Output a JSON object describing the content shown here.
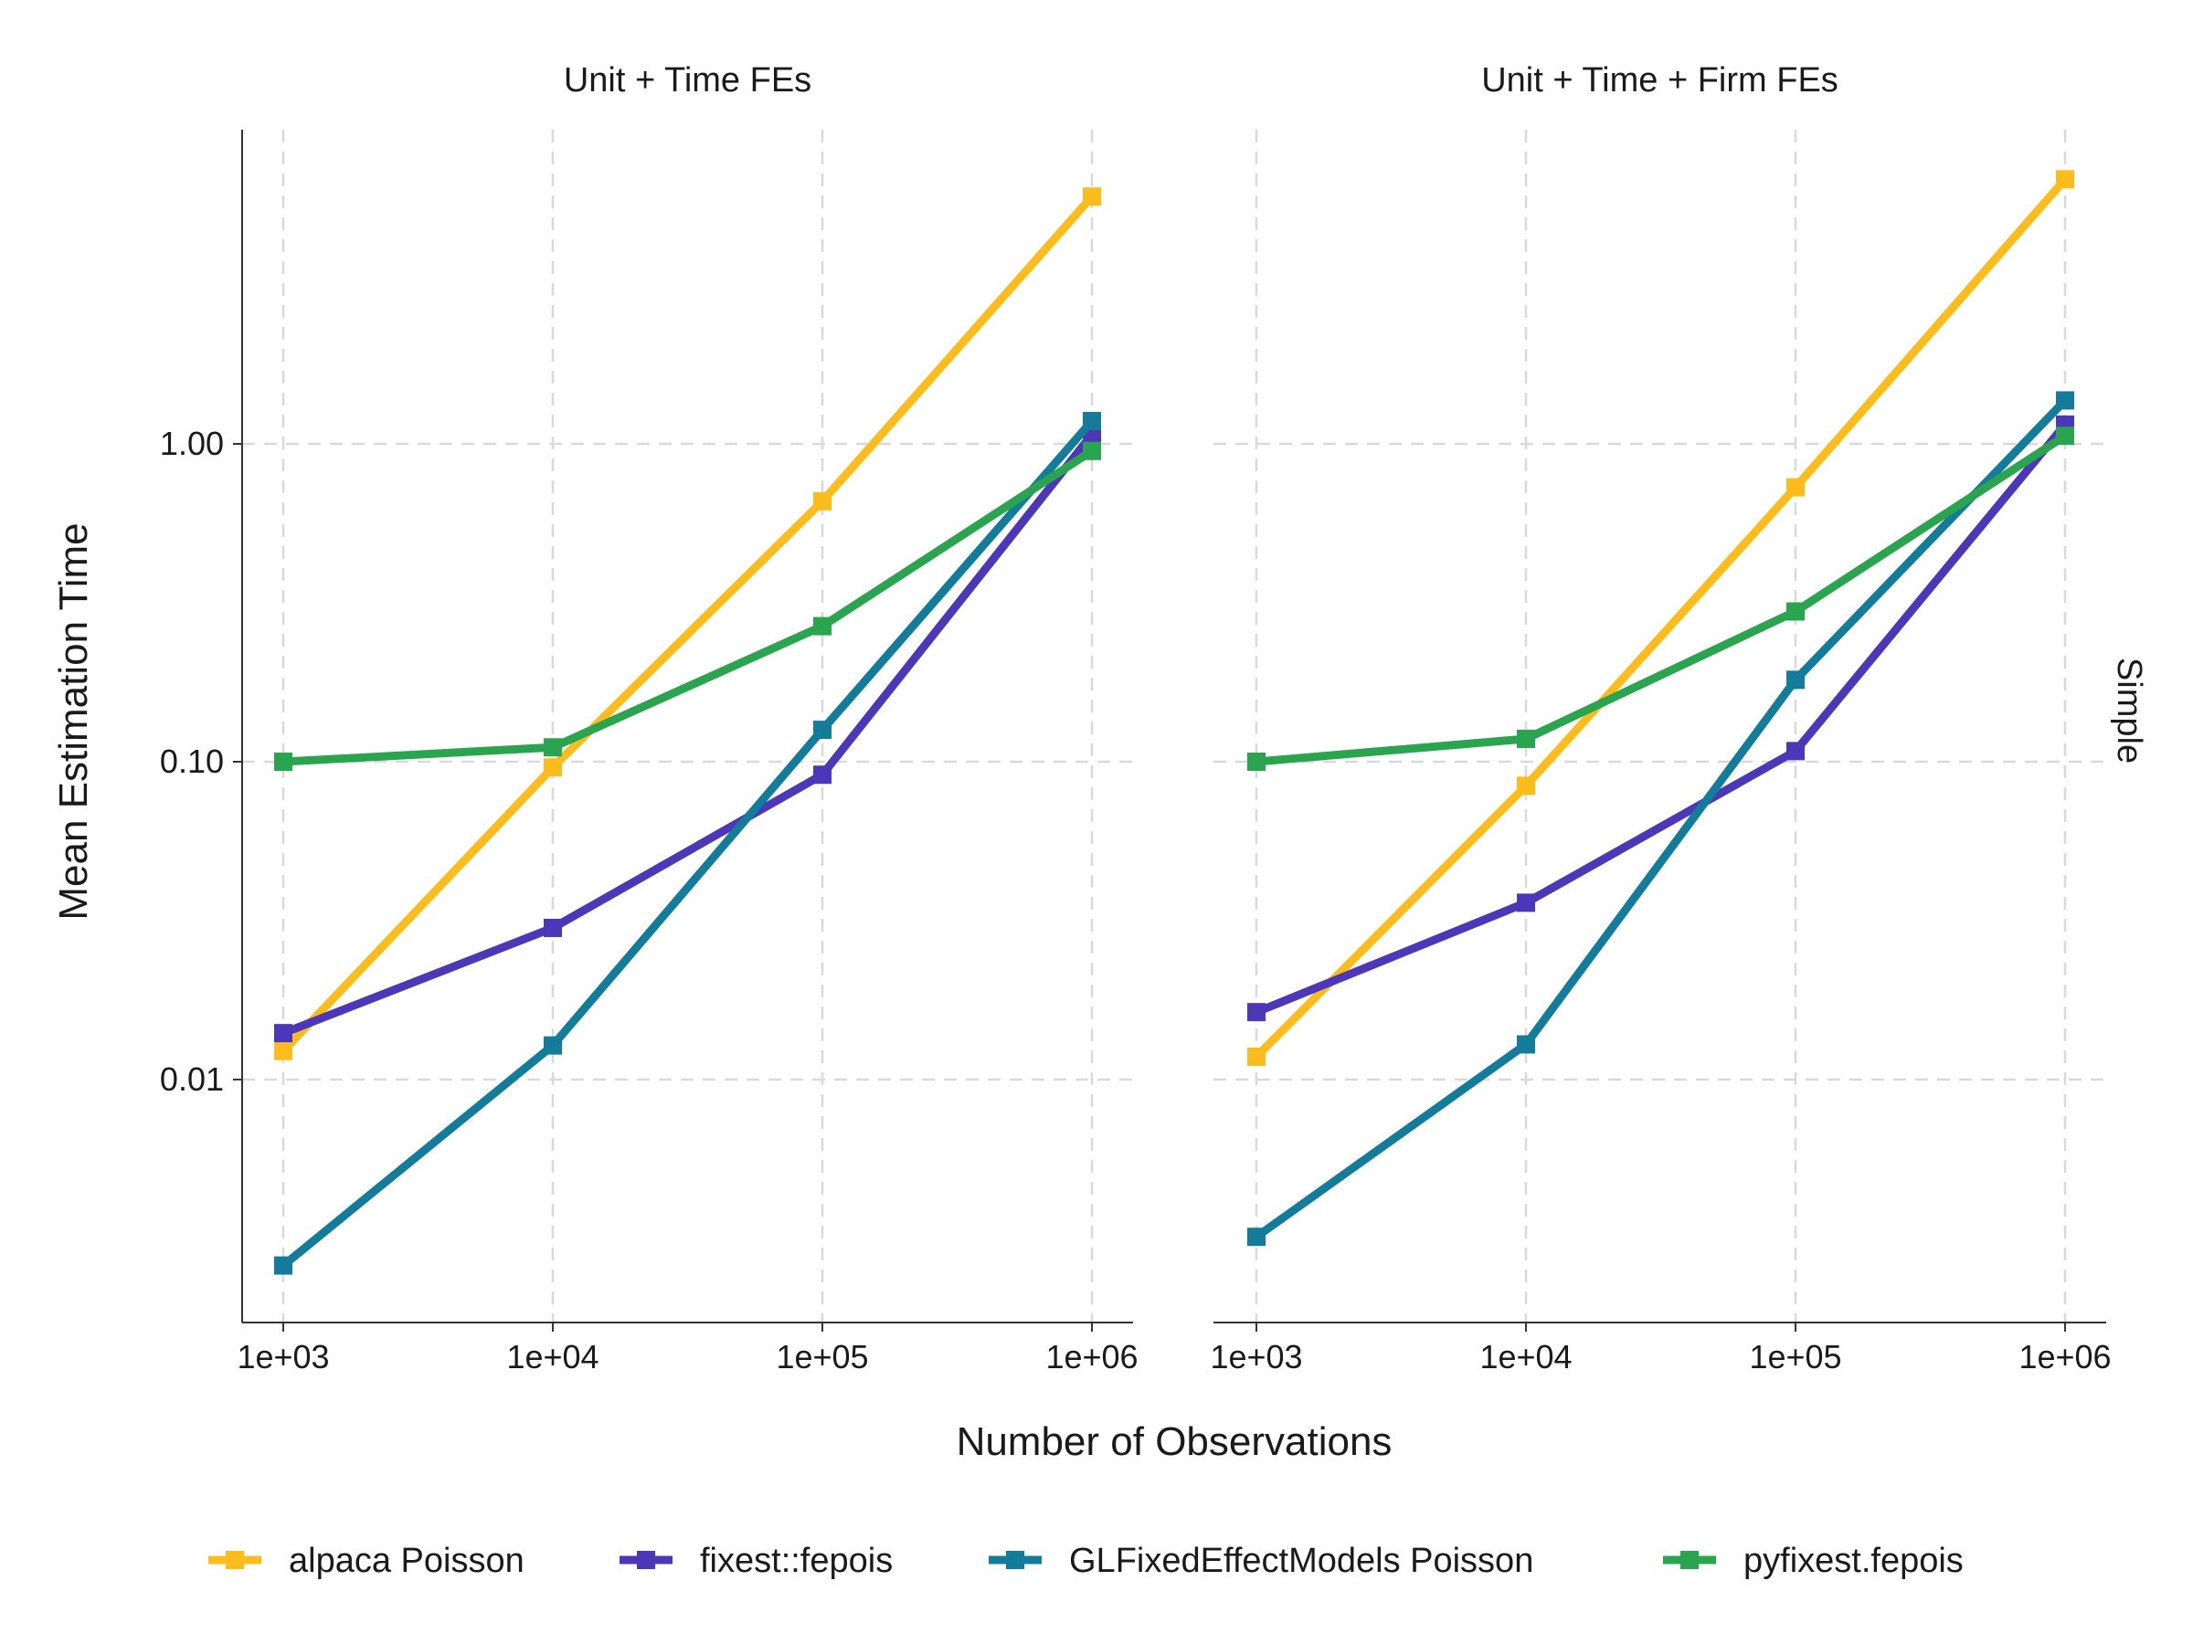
{
  "chart_data": {
    "type": "line",
    "y_scale": "log",
    "ylabel": "Mean Estimation Time",
    "xlabel": "Number of Observations",
    "x": [
      1000,
      10000,
      100000,
      1000000
    ],
    "x_tick_labels": [
      "1e+03",
      "1e+04",
      "1e+05",
      "1e+06"
    ],
    "y_ticks": [
      0.01,
      0.1,
      1.0
    ],
    "y_tick_labels": [
      "0.01",
      "0.10",
      "1.00"
    ],
    "ylim": [
      0.0018,
      14
    ],
    "row_label": "Simple",
    "grid": true,
    "legend_position": "bottom",
    "series_colors": {
      "alpaca Poisson": "#FBBC1C",
      "fixest::fepois": "#4B37B8",
      "GLFixedEffectModels Poisson": "#137C9B",
      "pyfixest.fepois": "#2AA44F"
    },
    "legend": [
      "alpaca Poisson",
      "fixest::fepois",
      "GLFixedEffectModels Poisson",
      "pyfixest.fepois"
    ],
    "panels": [
      {
        "title": "Unit + Time FEs",
        "series": [
          {
            "name": "alpaca Poisson",
            "values": [
              0.0123,
              0.096,
              0.66,
              6.0
            ]
          },
          {
            "name": "fixest::fepois",
            "values": [
              0.014,
              0.03,
              0.091,
              1.07
            ]
          },
          {
            "name": "GLFixedEffectModels Poisson",
            "values": [
              0.0026,
              0.0128,
              0.126,
              1.18
            ]
          },
          {
            "name": "pyfixest.fepois",
            "values": [
              0.1,
              0.111,
              0.267,
              0.95
            ]
          }
        ]
      },
      {
        "title": "Unit + Time + Firm FEs",
        "series": [
          {
            "name": "alpaca Poisson",
            "values": [
              0.0118,
              0.084,
              0.73,
              6.8
            ]
          },
          {
            "name": "fixest::fepois",
            "values": [
              0.0163,
              0.036,
              0.108,
              1.15
            ]
          },
          {
            "name": "GLFixedEffectModels Poisson",
            "values": [
              0.0032,
              0.0129,
              0.181,
              1.37
            ]
          },
          {
            "name": "pyfixest.fepois",
            "values": [
              0.1,
              0.118,
              0.297,
              1.06
            ]
          }
        ]
      }
    ]
  }
}
